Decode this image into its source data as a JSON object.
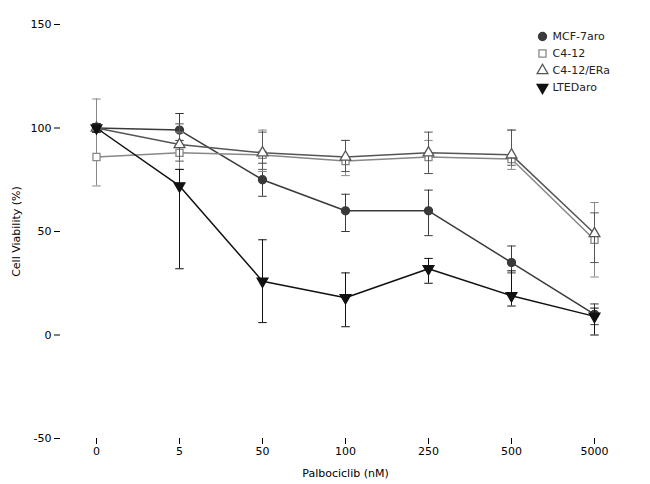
{
  "chart_data": {
    "type": "line",
    "xlabel": "Palbociclib (nM)",
    "ylabel": "Cell Viability (%)",
    "categories": [
      "0",
      "5",
      "50",
      "100",
      "250",
      "500",
      "5000"
    ],
    "series": [
      {
        "name": "MCF-7aro",
        "color": "#3a3a3a",
        "marker": "circle",
        "line_style": "solid",
        "values": [
          100,
          99,
          75,
          60,
          60,
          35,
          10
        ],
        "error_low": [
          2,
          5,
          8,
          10,
          12,
          5,
          5
        ],
        "error_high": [
          2,
          8,
          8,
          8,
          10,
          8,
          5
        ]
      },
      {
        "name": "C4-12",
        "color": "#888888",
        "marker": "square-open",
        "line_style": "solid",
        "values": [
          86,
          88,
          87,
          84,
          86,
          85,
          46
        ],
        "error_low": [
          14,
          8,
          8,
          7,
          8,
          5,
          18
        ],
        "error_high": [
          28,
          10,
          12,
          10,
          8,
          14,
          18
        ]
      },
      {
        "name": "C4-12/ERa",
        "color": "#555555",
        "marker": "triangle-up-open",
        "line_style": "solid",
        "values": [
          100,
          92,
          88,
          86,
          88,
          87,
          49
        ],
        "error_low": [
          2,
          8,
          8,
          7,
          10,
          5,
          14
        ],
        "error_high": [
          2,
          10,
          10,
          8,
          10,
          12,
          10
        ]
      },
      {
        "name": "LTEDaro",
        "color": "#111111",
        "marker": "triangle-down",
        "line_style": "solid",
        "values": [
          100,
          72,
          26,
          18,
          32,
          19,
          9
        ],
        "error_low": [
          2,
          40,
          20,
          14,
          7,
          5,
          9
        ],
        "error_high": [
          2,
          8,
          20,
          12,
          5,
          12,
          4
        ]
      }
    ],
    "ylim": [
      -50,
      150
    ],
    "yticks": [
      -50,
      0,
      50,
      100,
      150
    ],
    "grid": false,
    "legend": "upper right"
  }
}
